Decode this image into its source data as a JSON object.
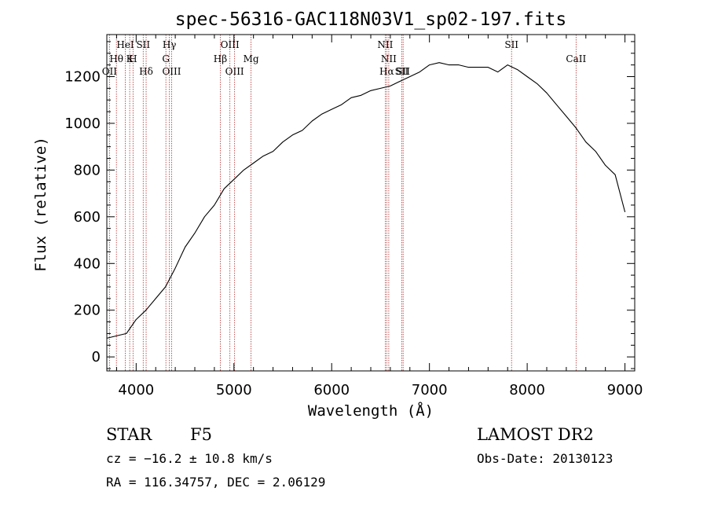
{
  "chart_data": {
    "type": "line",
    "title": "spec-56316-GAC118N03V1_sp02-197.fits",
    "xlabel": "Wavelength (Å)",
    "ylabel": "Flux (relative)",
    "xlim": [
      3700,
      9100
    ],
    "ylim": [
      -60,
      1380
    ],
    "xticks": [
      4000,
      5000,
      6000,
      7000,
      8000,
      9000
    ],
    "yticks": [
      0,
      200,
      400,
      600,
      800,
      1000,
      1200
    ],
    "grid": false,
    "series": [
      {
        "x": [
          3700,
          3800,
          3900,
          4000,
          4100,
          4200,
          4300,
          4400,
          4500,
          4600,
          4700,
          4800,
          4900,
          5000,
          5100,
          5200,
          5300,
          5400,
          5500,
          5600,
          5700,
          5800,
          5900,
          6000,
          6100,
          6200,
          6300,
          6400,
          6500,
          6600,
          6700,
          6800,
          6900,
          7000,
          7100,
          7200,
          7300,
          7400,
          7500,
          7600,
          7700,
          7800,
          7900,
          8000,
          8100,
          8200,
          8300,
          8400,
          8500,
          8600,
          8700,
          8800,
          8900,
          9000
        ],
        "y": [
          80,
          90,
          100,
          160,
          200,
          250,
          300,
          380,
          470,
          530,
          600,
          650,
          720,
          760,
          800,
          830,
          860,
          880,
          920,
          950,
          970,
          1010,
          1040,
          1060,
          1080,
          1110,
          1120,
          1140,
          1150,
          1160,
          1180,
          1200,
          1220,
          1250,
          1260,
          1250,
          1250,
          1240,
          1240,
          1240,
          1220,
          1250,
          1230,
          1200,
          1170,
          1130,
          1080,
          1030,
          980,
          920,
          880,
          820,
          780,
          620
        ]
      }
    ],
    "annotations": [
      {
        "label": "OII",
        "wavelength": 3727
      },
      {
        "label": "Hθ",
        "wavelength": 3798
      },
      {
        "label": "HeI",
        "wavelength": 3889
      },
      {
        "label": "K",
        "wavelength": 3934
      },
      {
        "label": "H",
        "wavelength": 3968
      },
      {
        "label": "SII",
        "wavelength": 4072
      },
      {
        "label": "Hδ",
        "wavelength": 4102
      },
      {
        "label": "Hγ",
        "wavelength": 4340
      },
      {
        "label": "G",
        "wavelength": 4304
      },
      {
        "label": "OIII",
        "wavelength": 4363
      },
      {
        "label": "Hβ",
        "wavelength": 4861
      },
      {
        "label": "OIII",
        "wavelength": 4959
      },
      {
        "label": "OIII",
        "wavelength": 5007
      },
      {
        "label": "Mg",
        "wavelength": 5175
      },
      {
        "label": "NII",
        "wavelength": 6548
      },
      {
        "label": "Hα",
        "wavelength": 6563
      },
      {
        "label": "NII",
        "wavelength": 6584
      },
      {
        "label": "SII",
        "wavelength": 6717
      },
      {
        "label": "SII",
        "wavelength": 6731
      },
      {
        "label": "SII",
        "wavelength": 7840
      },
      {
        "label": "CaII",
        "wavelength": 8500
      }
    ]
  },
  "info": {
    "class_label": "STAR",
    "subclass": "F5",
    "survey": "LAMOST DR2",
    "cz": "cz = −16.2 ± 10.8 km/s",
    "obs_date": "Obs-Date: 20130123",
    "coords": "RA = 116.34757, DEC =   2.06129"
  }
}
